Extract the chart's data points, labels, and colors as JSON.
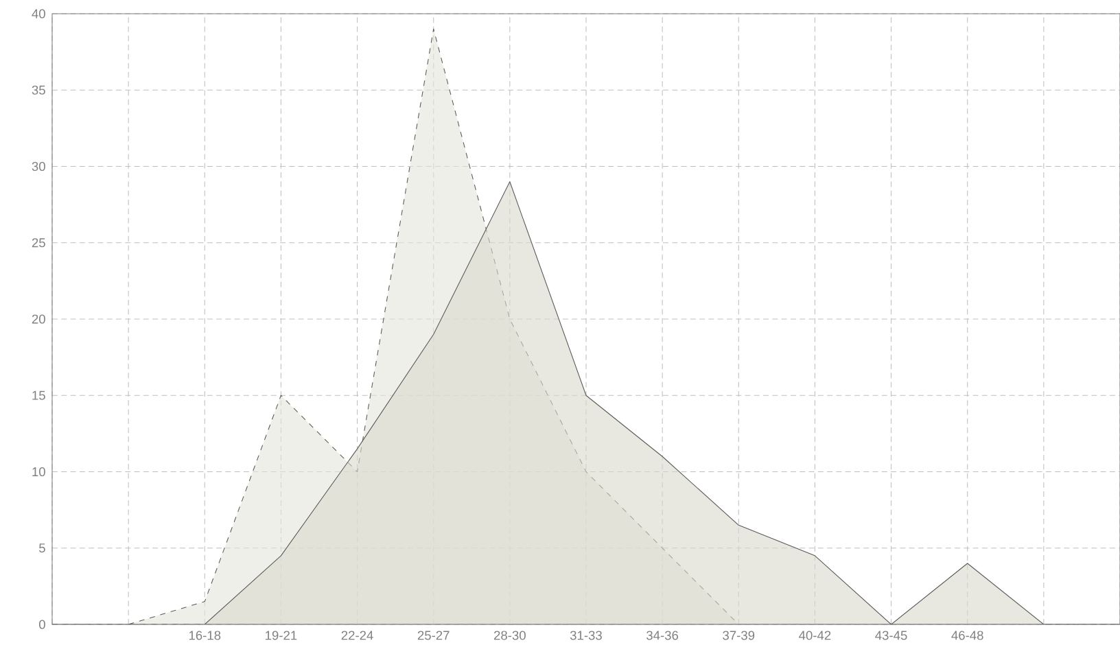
{
  "chart_data": {
    "type": "area",
    "categories": [
      null,
      null,
      "16-18",
      "19-21",
      "22-24",
      "25-27",
      "28-30",
      "31-33",
      "34-36",
      "37-39",
      "40-42",
      "43-45",
      "46-48",
      null,
      null
    ],
    "series": [
      {
        "color": "#e4e4dc",
        "line_style": "dashed",
        "values": [
          0,
          0,
          1.5,
          15,
          10,
          39,
          20,
          10,
          5,
          0,
          0,
          0,
          0,
          0,
          0
        ]
      },
      {
        "color": "#d8d8cc",
        "line_style": "solid",
        "values": [
          0,
          0,
          0,
          4.5,
          11.5,
          19,
          29,
          15,
          11,
          6.5,
          4.5,
          0,
          4,
          0,
          0
        ]
      }
    ],
    "ylim": [
      0,
      40
    ],
    "yticks": [
      0,
      5,
      10,
      15,
      20,
      25,
      30,
      35,
      40
    ],
    "grid": true
  }
}
